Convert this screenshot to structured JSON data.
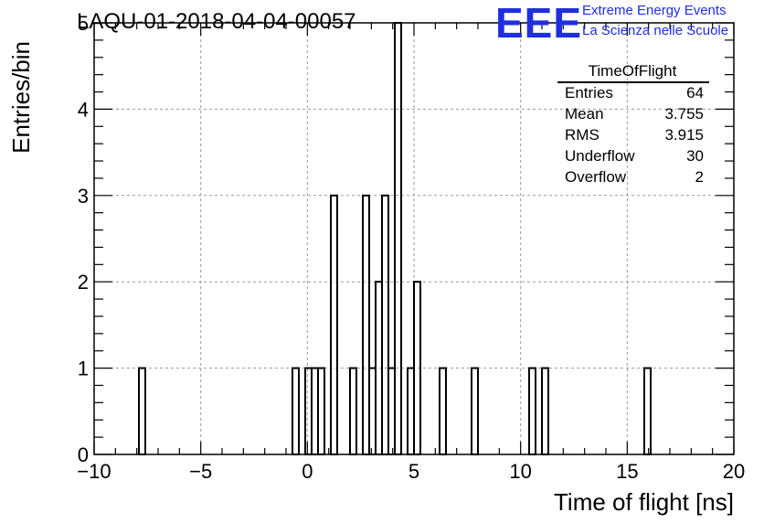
{
  "header": {
    "run_title": "LAQU-01-2018-04-04-00057",
    "logo_text": "EEE",
    "logo_line1": "Extreme Energy Events",
    "logo_line2": "La Scienza nelle Scuole",
    "logo_color": "#1f2ee0"
  },
  "stats": {
    "title": "TimeOfFlight",
    "rows": [
      {
        "label": "Entries",
        "value": "64"
      },
      {
        "label": "Mean",
        "value": "3.755"
      },
      {
        "label": "RMS",
        "value": "3.915"
      },
      {
        "label": "Underflow",
        "value": "30"
      },
      {
        "label": "Overflow",
        "value": "2"
      }
    ]
  },
  "chart_data": {
    "type": "histogram",
    "title": "LAQU-01-2018-04-04-00057",
    "xlabel": "Time of flight [ns]",
    "ylabel": "Entries/bin",
    "xlim": [
      -10,
      20
    ],
    "ylim": [
      0,
      5
    ],
    "grid": true,
    "bin_width": 0.3,
    "xticks": [
      -10,
      -5,
      0,
      5,
      10,
      15,
      20
    ],
    "xtick_labels": [
      "−10",
      "−5",
      "0",
      "5",
      "10",
      "15",
      "20"
    ],
    "yticks": [
      0,
      1,
      2,
      3,
      4,
      5
    ],
    "ytick_labels": [
      "0",
      "1",
      "2",
      "3",
      "4",
      "5"
    ],
    "bins": [
      {
        "x": -7.9,
        "count": 1
      },
      {
        "x": -0.7,
        "count": 1
      },
      {
        "x": -0.1,
        "count": 1
      },
      {
        "x": 0.2,
        "count": 1
      },
      {
        "x": 0.5,
        "count": 1
      },
      {
        "x": 1.1,
        "count": 3
      },
      {
        "x": 2.0,
        "count": 1
      },
      {
        "x": 2.6,
        "count": 3
      },
      {
        "x": 2.9,
        "count": 1
      },
      {
        "x": 3.2,
        "count": 2
      },
      {
        "x": 3.5,
        "count": 3
      },
      {
        "x": 3.8,
        "count": 1
      },
      {
        "x": 4.1,
        "count": 5
      },
      {
        "x": 4.7,
        "count": 1
      },
      {
        "x": 5.0,
        "count": 2
      },
      {
        "x": 6.2,
        "count": 1
      },
      {
        "x": 7.7,
        "count": 1
      },
      {
        "x": 10.4,
        "count": 1
      },
      {
        "x": 11.0,
        "count": 1
      },
      {
        "x": 15.8,
        "count": 1
      }
    ]
  }
}
